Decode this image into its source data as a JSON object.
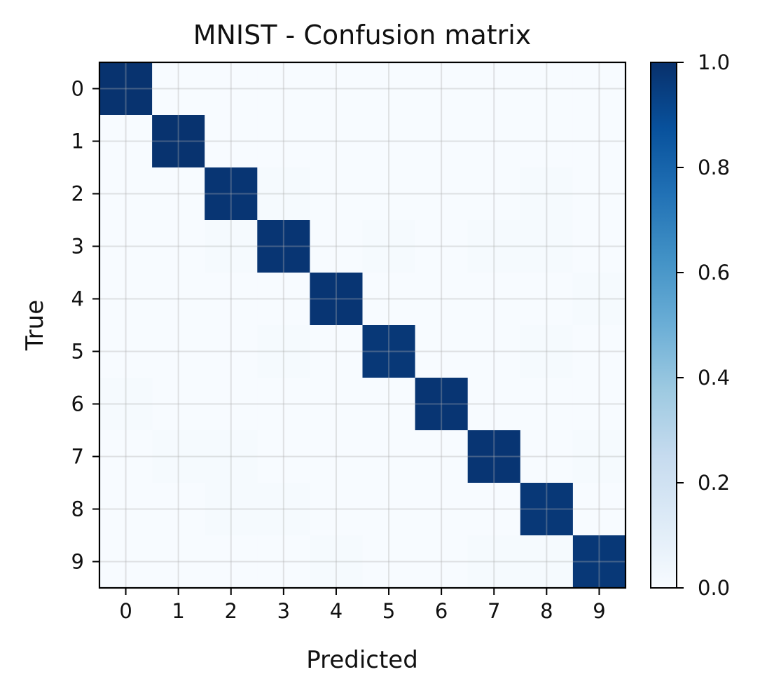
{
  "chart_data": {
    "type": "heatmap",
    "title": "MNIST - Confusion matrix",
    "xlabel": "Predicted",
    "ylabel": "True",
    "x_categories": [
      "0",
      "1",
      "2",
      "3",
      "4",
      "5",
      "6",
      "7",
      "8",
      "9"
    ],
    "y_categories": [
      "0",
      "1",
      "2",
      "3",
      "4",
      "5",
      "6",
      "7",
      "8",
      "9"
    ],
    "values": [
      [
        0.99,
        0.0,
        0.0,
        0.0,
        0.0,
        0.0,
        0.0,
        0.0,
        0.0,
        0.0
      ],
      [
        0.0,
        0.99,
        0.0,
        0.0,
        0.0,
        0.0,
        0.0,
        0.0,
        0.0,
        0.0
      ],
      [
        0.0,
        0.0,
        0.98,
        0.01,
        0.0,
        0.0,
        0.0,
        0.0,
        0.01,
        0.0
      ],
      [
        0.0,
        0.0,
        0.01,
        0.98,
        0.0,
        0.01,
        0.0,
        0.01,
        0.01,
        0.0
      ],
      [
        0.0,
        0.0,
        0.0,
        0.0,
        0.98,
        0.0,
        0.0,
        0.0,
        0.0,
        0.01
      ],
      [
        0.0,
        0.0,
        0.0,
        0.01,
        0.0,
        0.97,
        0.0,
        0.0,
        0.01,
        0.0
      ],
      [
        0.01,
        0.0,
        0.0,
        0.0,
        0.0,
        0.0,
        0.98,
        0.0,
        0.0,
        0.0
      ],
      [
        0.0,
        0.01,
        0.01,
        0.0,
        0.0,
        0.0,
        0.0,
        0.98,
        0.0,
        0.01
      ],
      [
        0.0,
        0.0,
        0.01,
        0.01,
        0.0,
        0.0,
        0.0,
        0.0,
        0.97,
        0.0
      ],
      [
        0.0,
        0.0,
        0.0,
        0.0,
        0.01,
        0.0,
        0.0,
        0.01,
        0.01,
        0.97
      ]
    ],
    "colormap": "Blues",
    "colormap_stops": [
      "#f7fbff",
      "#deebf7",
      "#c6dbef",
      "#9ecae1",
      "#6baed6",
      "#4292c6",
      "#2171b5",
      "#08519c",
      "#08306b"
    ],
    "vmin": 0.0,
    "vmax": 1.0,
    "colorbar_ticks": [
      "0.0",
      "0.2",
      "0.4",
      "0.6",
      "0.8",
      "1.0"
    ],
    "grid": true,
    "legend": "colorbar-right"
  }
}
